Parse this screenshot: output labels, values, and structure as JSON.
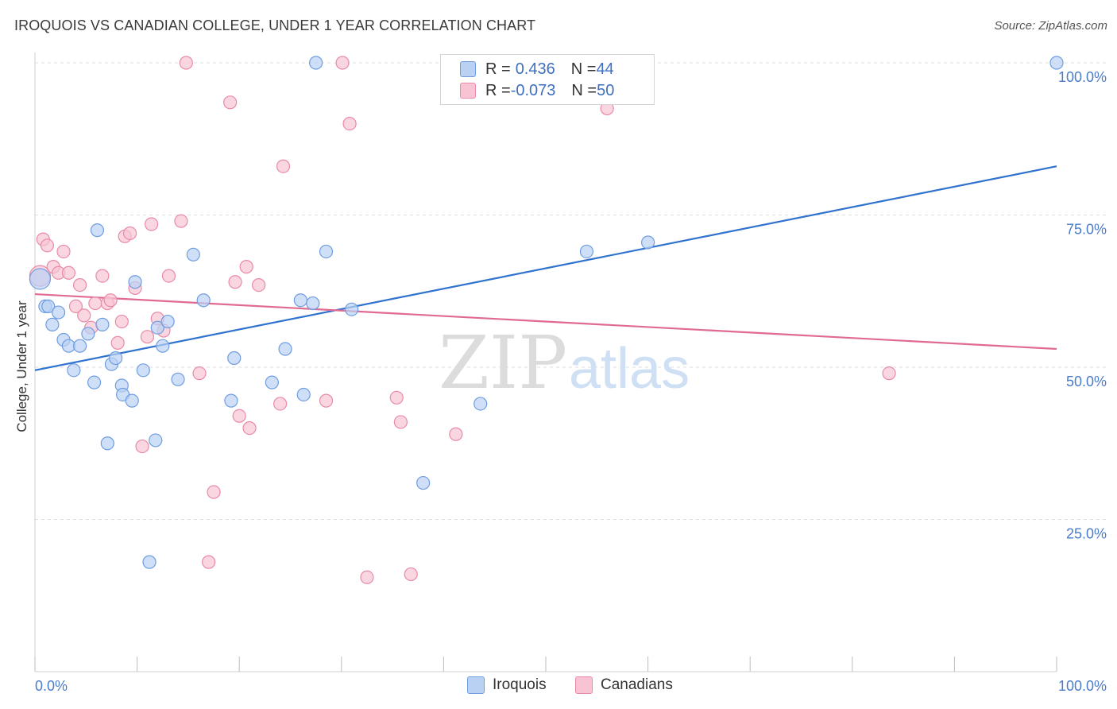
{
  "title": "IROQUOIS VS CANADIAN COLLEGE, UNDER 1 YEAR CORRELATION CHART",
  "source": "Source: ZipAtlas.com",
  "watermark": {
    "zip": "ZIP",
    "atlas": "atlas"
  },
  "colors": {
    "iroquois_fill": "#b9d2f3",
    "iroquois_stroke": "#6f9de0",
    "iroquois_line": "#2f72cf",
    "canadians_fill": "#f8c4d3",
    "canadians_stroke": "#e88aa8",
    "canadians_line": "#e06a92",
    "tick_label": "#4a7cc9"
  },
  "legend": {
    "rows": [
      {
        "r_label": "R = ",
        "r_value": "0.436",
        "n_label": "N = ",
        "n_value": "44"
      },
      {
        "r_label": "R = ",
        "r_value": "-0.073",
        "n_label": "N = ",
        "n_value": "50"
      }
    ]
  },
  "bottom_legend": {
    "iroquois": "Iroquois",
    "canadians": "Canadians"
  },
  "chart_data": {
    "type": "scatter",
    "title": "IROQUOIS VS CANADIAN COLLEGE, UNDER 1 YEAR CORRELATION CHART",
    "xlabel": "",
    "ylabel": "College, Under 1 year",
    "xlim": [
      0,
      100
    ],
    "ylim": [
      0,
      100
    ],
    "x_tick_labels": [
      "0.0%",
      "100.0%"
    ],
    "y_tick_labels": [
      "25.0%",
      "50.0%",
      "75.0%",
      "100.0%"
    ],
    "y_ticks": [
      25,
      50,
      75,
      100
    ],
    "grid": "horizontal dashed",
    "legend_position": "top-center",
    "series": [
      {
        "name": "Iroquois",
        "r": 0.436,
        "n": 44,
        "trend": {
          "x": [
            0,
            100
          ],
          "y": [
            49.5,
            83
          ]
        },
        "points": [
          [
            0.5,
            64.5
          ],
          [
            1.0,
            60
          ],
          [
            1.3,
            60
          ],
          [
            1.7,
            57
          ],
          [
            2.3,
            59
          ],
          [
            2.8,
            54.5
          ],
          [
            3.3,
            53.5
          ],
          [
            3.8,
            49.5
          ],
          [
            4.4,
            53.5
          ],
          [
            5.2,
            55.5
          ],
          [
            5.8,
            47.5
          ],
          [
            6.1,
            72.5
          ],
          [
            6.6,
            57
          ],
          [
            7.1,
            37.5
          ],
          [
            7.5,
            50.5
          ],
          [
            7.9,
            51.5
          ],
          [
            8.5,
            47
          ],
          [
            8.6,
            45.5
          ],
          [
            9.5,
            44.5
          ],
          [
            9.8,
            64
          ],
          [
            10.6,
            49.5
          ],
          [
            11.2,
            18
          ],
          [
            11.8,
            38
          ],
          [
            12.0,
            56.5
          ],
          [
            12.5,
            53.5
          ],
          [
            13.0,
            57.5
          ],
          [
            14.0,
            48
          ],
          [
            15.5,
            68.5
          ],
          [
            16.5,
            61
          ],
          [
            19.2,
            44.5
          ],
          [
            19.5,
            51.5
          ],
          [
            23.2,
            47.5
          ],
          [
            24.5,
            53
          ],
          [
            26.0,
            61
          ],
          [
            26.3,
            45.5
          ],
          [
            27.2,
            60.5
          ],
          [
            27.5,
            100
          ],
          [
            28.5,
            69
          ],
          [
            31.0,
            59.5
          ],
          [
            38.0,
            31
          ],
          [
            43.6,
            44
          ],
          [
            54.0,
            69
          ],
          [
            60.0,
            70.5
          ],
          [
            100.0,
            100
          ]
        ]
      },
      {
        "name": "Canadians",
        "r": -0.073,
        "n": 50,
        "trend": {
          "x": [
            0,
            100
          ],
          "y": [
            62,
            53
          ]
        },
        "points": [
          [
            0.5,
            65
          ],
          [
            0.8,
            71
          ],
          [
            1.2,
            70
          ],
          [
            1.8,
            66.5
          ],
          [
            2.3,
            65.5
          ],
          [
            2.8,
            69
          ],
          [
            3.3,
            65.5
          ],
          [
            4.0,
            60
          ],
          [
            4.4,
            63.5
          ],
          [
            4.8,
            58.5
          ],
          [
            5.5,
            56.5
          ],
          [
            5.9,
            60.5
          ],
          [
            6.6,
            65
          ],
          [
            7.1,
            60.5
          ],
          [
            7.4,
            61
          ],
          [
            8.1,
            54
          ],
          [
            8.5,
            57.5
          ],
          [
            8.8,
            71.5
          ],
          [
            9.3,
            72
          ],
          [
            9.8,
            63
          ],
          [
            10.5,
            37
          ],
          [
            11.0,
            55
          ],
          [
            11.4,
            73.5
          ],
          [
            12.0,
            58
          ],
          [
            12.6,
            56
          ],
          [
            13.1,
            65
          ],
          [
            14.3,
            74
          ],
          [
            14.8,
            100
          ],
          [
            16.1,
            49
          ],
          [
            17.0,
            18
          ],
          [
            17.5,
            29.5
          ],
          [
            19.1,
            93.5
          ],
          [
            19.6,
            64
          ],
          [
            20.0,
            42
          ],
          [
            20.7,
            66.5
          ],
          [
            21.0,
            40
          ],
          [
            21.9,
            63.5
          ],
          [
            24.0,
            44
          ],
          [
            24.3,
            83
          ],
          [
            28.5,
            44.5
          ],
          [
            30.1,
            100
          ],
          [
            30.8,
            90
          ],
          [
            32.5,
            15.5
          ],
          [
            35.4,
            45
          ],
          [
            35.8,
            41
          ],
          [
            36.8,
            16
          ],
          [
            41.2,
            39
          ],
          [
            48.0,
            100
          ],
          [
            56.0,
            92.5
          ],
          [
            83.6,
            49
          ]
        ]
      }
    ]
  }
}
